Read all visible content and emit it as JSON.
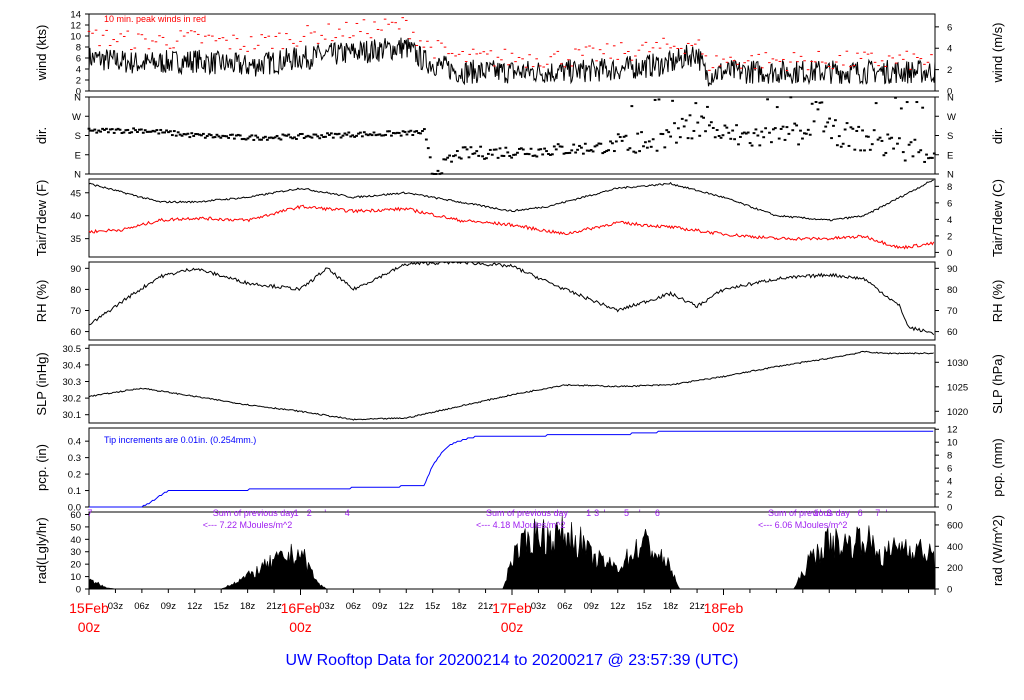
{
  "title": "UW Rooftop Data for 20200214  to  20200217 @ 23:57:39  (UTC)",
  "colors": {
    "wind": "#000000",
    "peak": "#ff0000",
    "tair": "#000000",
    "tdew": "#ff0000",
    "precip": "#0000ff",
    "rad_annot": "#a020f0",
    "day_labels": "#ff0000",
    "title": "#0000ff"
  },
  "chart_data": [
    {
      "type": "line",
      "panel": "wind",
      "ylabel": "wind (kts)",
      "ylabel_right": "wind (m/s)",
      "annotation": "10 min. peak winds in red",
      "yticks": [
        0,
        2,
        4,
        6,
        8,
        10,
        12,
        14
      ],
      "yticks_right": [
        0,
        2,
        4,
        6
      ],
      "ylim": [
        0,
        14
      ],
      "series": [
        {
          "name": "wind",
          "color": "#000000",
          "x": [
            0,
            6,
            12,
            18,
            24,
            30,
            36,
            38,
            42,
            48,
            54,
            60,
            66,
            69,
            70,
            72,
            78,
            84,
            90,
            96
          ],
          "y": [
            6,
            5,
            5.5,
            4.5,
            6,
            7,
            8,
            5.5,
            3.5,
            3.5,
            3.5,
            4,
            5,
            7,
            3,
            3.5,
            3.5,
            3.5,
            3.5,
            3.5
          ]
        },
        {
          "name": "10 min. peak winds",
          "color": "#ff0000",
          "x": [
            0,
            6,
            12,
            18,
            24,
            30,
            36,
            38,
            42,
            48,
            54,
            60,
            66,
            69,
            70,
            72,
            78,
            84,
            90,
            96
          ],
          "y": [
            10,
            9,
            9.5,
            8.5,
            10,
            11,
            12,
            8.5,
            6,
            6,
            6,
            7,
            8,
            9,
            5,
            5.5,
            5.5,
            5.5,
            5.5,
            5.5
          ]
        }
      ]
    },
    {
      "type": "scatter",
      "panel": "dir",
      "ylabel": "dir.",
      "ylabel_right": "dir.",
      "yticks": [
        "N",
        "E",
        "S",
        "W",
        "N"
      ],
      "ylim": [
        0,
        360
      ],
      "series": [
        {
          "name": "dir",
          "color": "#000000",
          "x": [
            0,
            6,
            12,
            18,
            24,
            30,
            36,
            38,
            39,
            42,
            48,
            54,
            60,
            66,
            69,
            72,
            78,
            84,
            90,
            96
          ],
          "y": [
            200,
            205,
            180,
            170,
            175,
            185,
            190,
            195,
            0,
            95,
            105,
            115,
            130,
            170,
            240,
            180,
            170,
            200,
            140,
            100
          ]
        }
      ]
    },
    {
      "type": "line",
      "panel": "temp",
      "ylabel": "Tair/Tdew (F)",
      "ylabel_right": "Tair/Tdew (C)",
      "yticks": [
        35,
        40,
        45
      ],
      "yticks_right": [
        0,
        2,
        4,
        6,
        8
      ],
      "ylim": [
        31,
        48
      ],
      "series": [
        {
          "name": "Tair",
          "color": "#000000",
          "x": [
            0,
            4,
            8,
            12,
            18,
            24,
            30,
            36,
            42,
            48,
            52,
            60,
            66,
            72,
            78,
            84,
            88,
            92,
            96
          ],
          "y": [
            47,
            45,
            43,
            43,
            44,
            46,
            44,
            45,
            43,
            41,
            42,
            46,
            47,
            44,
            40,
            39,
            40,
            44,
            48
          ]
        },
        {
          "name": "Tdew",
          "color": "#ff0000",
          "x": [
            0,
            4,
            8,
            12,
            18,
            24,
            30,
            36,
            42,
            48,
            54,
            60,
            66,
            72,
            78,
            84,
            88,
            92,
            96
          ],
          "y": [
            36.5,
            37,
            39,
            39.5,
            39,
            42,
            41,
            41.5,
            39,
            38,
            36,
            38.5,
            37.5,
            36,
            35,
            35,
            35.5,
            33,
            34
          ]
        }
      ]
    },
    {
      "type": "line",
      "panel": "rh",
      "ylabel": "RH (%)",
      "ylabel_right": "RH (%)",
      "yticks": [
        60,
        70,
        80,
        90
      ],
      "ylim": [
        56,
        93
      ],
      "series": [
        {
          "name": "RH",
          "color": "#000000",
          "x": [
            0,
            4,
            8,
            12,
            18,
            24,
            27,
            30,
            36,
            42,
            48,
            54,
            60,
            66,
            69,
            72,
            78,
            84,
            88,
            92,
            93,
            96
          ],
          "y": [
            63,
            75,
            86,
            90,
            83,
            80,
            90,
            80,
            92,
            93,
            91,
            80,
            70,
            78,
            72,
            80,
            85,
            87,
            85,
            72,
            62,
            59
          ]
        }
      ]
    },
    {
      "type": "line",
      "panel": "slp",
      "ylabel": "SLP (inHg)",
      "ylabel_right": "SLP (hPa)",
      "yticks": [
        30.1,
        30.2,
        30.3,
        30.4,
        30.5
      ],
      "yticks_right": [
        1020,
        1025,
        1030
      ],
      "ylim": [
        30.05,
        30.52
      ],
      "series": [
        {
          "name": "SLP",
          "color": "#000000",
          "x": [
            0,
            6,
            12,
            18,
            24,
            30,
            36,
            42,
            48,
            54,
            60,
            66,
            72,
            78,
            84,
            88,
            90,
            96
          ],
          "y": [
            30.21,
            30.26,
            30.21,
            30.16,
            30.12,
            30.07,
            30.08,
            30.15,
            30.22,
            30.28,
            30.27,
            30.28,
            30.33,
            30.39,
            30.44,
            30.48,
            30.47,
            30.47
          ]
        }
      ]
    },
    {
      "type": "line",
      "panel": "pcp",
      "ylabel": "pcp. (in)",
      "ylabel_right": "pcp. (mm)",
      "annotation": "Tip increments are 0.01in. (0.254mm.)",
      "yticks": [
        0.0,
        0.1,
        0.2,
        0.3,
        0.4
      ],
      "yticks_right": [
        0,
        2,
        4,
        6,
        8,
        10,
        12
      ],
      "ylim": [
        0,
        0.48
      ],
      "series": [
        {
          "name": "pcp",
          "color": "#0000ff",
          "x": [
            0,
            6,
            7,
            9,
            27,
            38,
            39,
            40,
            41,
            42,
            44,
            60,
            66,
            96
          ],
          "y": [
            0,
            0,
            0.03,
            0.1,
            0.11,
            0.13,
            0.25,
            0.33,
            0.38,
            0.4,
            0.43,
            0.44,
            0.46,
            0.46
          ]
        }
      ]
    },
    {
      "type": "area",
      "panel": "rad",
      "ylabel": "rad(Lgly/hr)",
      "ylabel_right": "rad (W/m^2)",
      "yticks": [
        0,
        10,
        20,
        30,
        40,
        50,
        60
      ],
      "yticks_right": [
        0,
        200,
        400,
        600
      ],
      "ylim": [
        0,
        62
      ],
      "annotations": [
        {
          "text": "Sum of previous day",
          "x": 12
        },
        {
          "text": "<--- 7.22 MJoules/m^2",
          "x": 12
        },
        {
          "text": "Sum of previous day",
          "x": 43
        },
        {
          "text": "<--- 4.18 MJoules/m^2",
          "x": 43
        },
        {
          "text": "Sum of previous day",
          "x": 75
        },
        {
          "text": "<--- 6.06 MJoules/m^2",
          "x": 75
        }
      ],
      "marker_labels": [
        "7",
        "1",
        "2",
        "'",
        "4",
        "1",
        "3",
        "'",
        "5",
        "'",
        "6",
        "1",
        "'",
        "3",
        "6",
        "7",
        "'"
      ],
      "series": [
        {
          "name": "rad",
          "color": "#000000",
          "x": [
            0,
            1,
            2,
            3,
            15,
            18,
            21,
            24,
            26,
            27,
            39,
            44,
            47,
            48,
            51,
            52,
            54,
            56,
            57,
            60,
            63,
            66,
            67,
            69,
            71,
            80,
            82,
            84,
            86,
            88,
            90,
            92,
            94,
            96
          ],
          "y": [
            8,
            5,
            1,
            0,
            0,
            12,
            26,
            35,
            5,
            0,
            0,
            0,
            0,
            30,
            55,
            48,
            52,
            43,
            30,
            20,
            45,
            20,
            0,
            0,
            0,
            0,
            30,
            45,
            42,
            50,
            30,
            42,
            38,
            30
          ]
        }
      ]
    }
  ],
  "x_axis": {
    "ticks": [
      "03z",
      "06z",
      "09z",
      "12z",
      "15z",
      "18z",
      "21z",
      "03z",
      "06z",
      "09z",
      "12z",
      "15z",
      "18z",
      "21z",
      "03z",
      "06z",
      "09z",
      "12z",
      "15z",
      "18z",
      "21z"
    ],
    "days": [
      {
        "top": "15Feb",
        "bottom": "00z"
      },
      {
        "top": "16Feb",
        "bottom": "00z"
      },
      {
        "top": "17Feb",
        "bottom": "00z"
      },
      {
        "top": "18Feb",
        "bottom": "00z"
      }
    ]
  }
}
